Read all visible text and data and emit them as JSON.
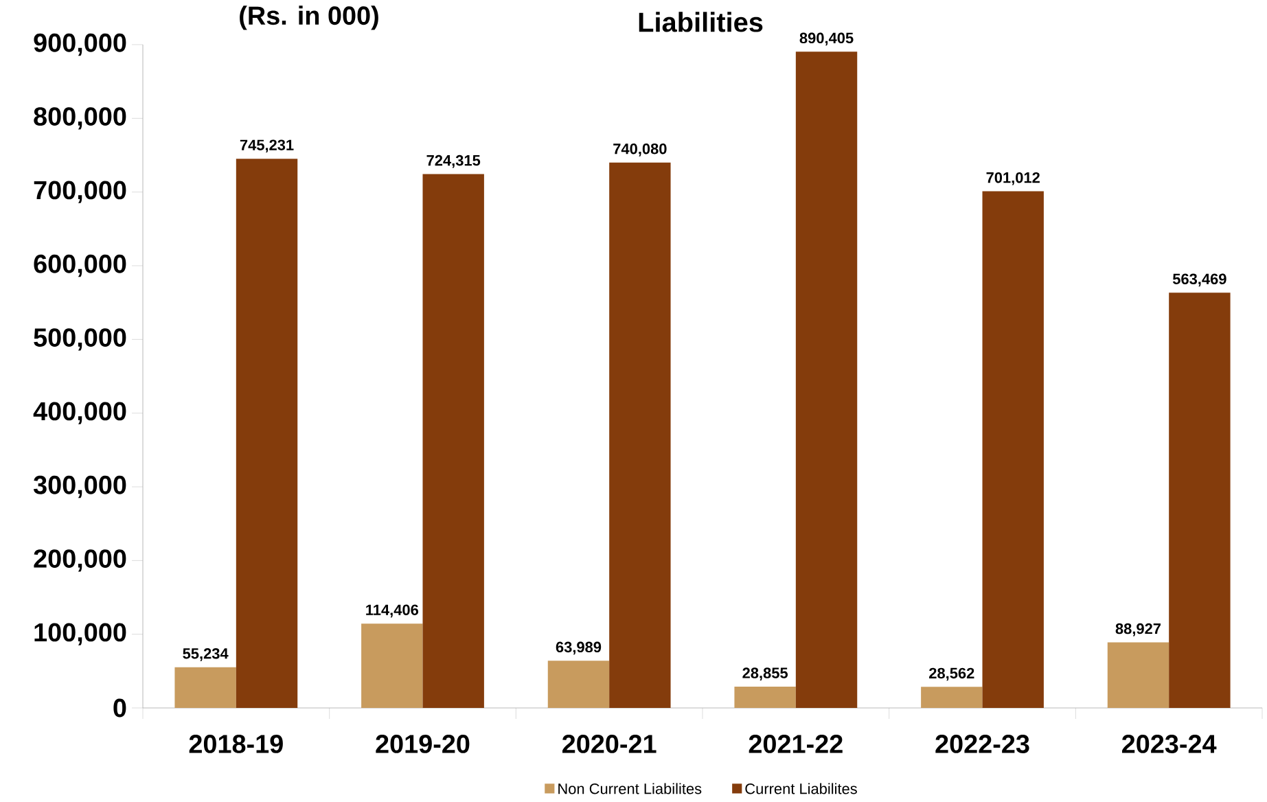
{
  "chart_data": {
    "type": "bar",
    "title": "Liabilities",
    "ylabel": "(Rs. in 000)",
    "categories": [
      "2018-19",
      "2019-20",
      "2020-21",
      "2021-22",
      "2022-23",
      "2023-24"
    ],
    "series": [
      {
        "name": "Non Current Liabilites",
        "color": "#c89b5e",
        "values": [
          55234,
          114406,
          63989,
          28855,
          28562,
          88927
        ],
        "value_labels": [
          "55,234",
          "114,406",
          "63,989",
          "28,855",
          "28,562",
          "88,927"
        ]
      },
      {
        "name": "Current Liabilites",
        "color": "#843c0c",
        "values": [
          745231,
          724315,
          740080,
          890405,
          701012,
          563469
        ],
        "value_labels": [
          "745,231",
          "724,315",
          "740,080",
          "890,405",
          "701,012",
          "563,469"
        ]
      }
    ],
    "ylim": [
      0,
      900000
    ],
    "yticks": [
      {
        "value": 0,
        "label": "0"
      },
      {
        "value": 100000,
        "label": "100,000"
      },
      {
        "value": 200000,
        "label": "200,000"
      },
      {
        "value": 300000,
        "label": "300,000"
      },
      {
        "value": 400000,
        "label": "400,000"
      },
      {
        "value": 500000,
        "label": "500,000"
      },
      {
        "value": 600000,
        "label": "600,000"
      },
      {
        "value": 700000,
        "label": "700,000"
      },
      {
        "value": 800000,
        "label": "800,000"
      },
      {
        "value": 900000,
        "label": "900,000"
      }
    ],
    "grid": false,
    "legend": "bottom"
  }
}
